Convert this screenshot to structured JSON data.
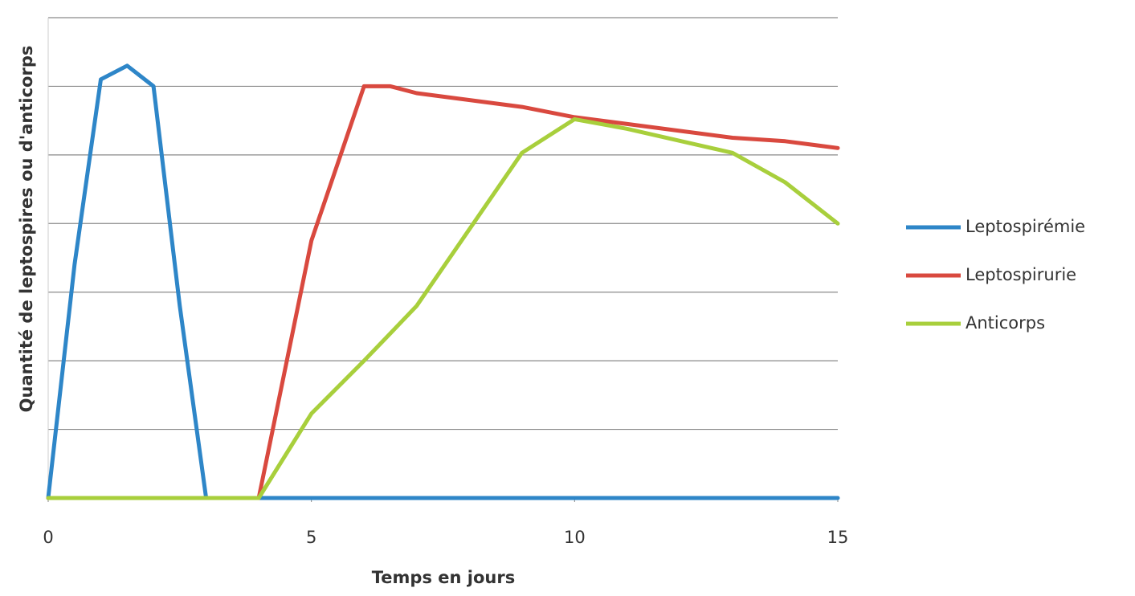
{
  "chart_data": {
    "type": "line",
    "x_label": "Temps en jours",
    "y_label": "Quantité de leptospires ou d'anticorps",
    "x": [
      0,
      0.5,
      1,
      1.5,
      2,
      2.5,
      3,
      4,
      5,
      6,
      6.5,
      7,
      9,
      10,
      11,
      13,
      14,
      15
    ],
    "series": [
      {
        "name": "Leptospirémie",
        "color": "#2e86c8",
        "values": [
          0,
          3.4,
          6.1,
          6.3,
          6.0,
          2.8,
          0,
          0,
          0,
          0,
          0,
          0,
          0,
          0,
          0,
          0,
          0,
          0
        ]
      },
      {
        "name": "Leptospirurie",
        "color": "#d9493f",
        "values": [
          0,
          0,
          0,
          0,
          0,
          0,
          0,
          0,
          3.75,
          6.0,
          6.0,
          5.9,
          5.7,
          5.55,
          5.45,
          5.25,
          5.2,
          5.1
        ]
      },
      {
        "name": "Anticorps",
        "color": "#a8cf3c",
        "values": [
          0,
          0,
          0,
          0,
          0,
          0,
          0,
          0,
          1.23,
          2.0,
          2.4,
          2.8,
          5.03,
          5.52,
          5.38,
          5.03,
          4.6,
          4.0
        ]
      }
    ],
    "xlim": [
      0,
      15
    ],
    "xticks": [
      0,
      5,
      10,
      15
    ],
    "ylim": [
      0,
      7
    ],
    "yticks": [
      0,
      1,
      2,
      3,
      4,
      5,
      6,
      7
    ],
    "grid": true,
    "legend": "right"
  }
}
